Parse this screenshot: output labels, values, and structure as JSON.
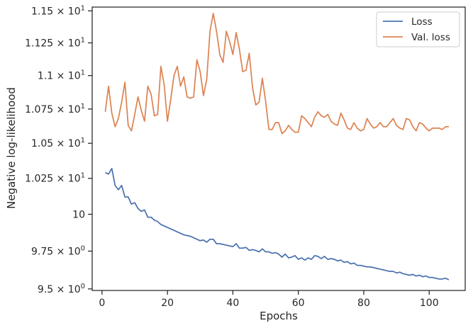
{
  "chart_data": {
    "type": "line",
    "xlabel": "Epochs",
    "ylabel": "Negative log-likelihood",
    "xlim": [
      -3,
      111
    ],
    "ylim": [
      9.49,
      11.53
    ],
    "yscale": "log",
    "grid": false,
    "legend_position": "top-right",
    "x_ticks": [
      0,
      20,
      40,
      60,
      80,
      100
    ],
    "y_ticks": [
      {
        "value": 9.5,
        "mantissa": "9.5",
        "exp": "0"
      },
      {
        "value": 9.75,
        "mantissa": "9.75",
        "exp": "0"
      },
      {
        "value": 10,
        "mantissa": "10",
        "exp": ""
      },
      {
        "value": 10.25,
        "mantissa": "1.025",
        "exp": "1"
      },
      {
        "value": 10.5,
        "mantissa": "1.05",
        "exp": "1"
      },
      {
        "value": 10.75,
        "mantissa": "1.075",
        "exp": "1"
      },
      {
        "value": 11,
        "mantissa": "1.1",
        "exp": "1"
      },
      {
        "value": 11.25,
        "mantissa": "1.125",
        "exp": "1"
      },
      {
        "value": 11.5,
        "mantissa": "1.15",
        "exp": "1"
      }
    ],
    "times_symbol": "×",
    "x": [
      1,
      2,
      3,
      4,
      5,
      6,
      7,
      8,
      9,
      10,
      11,
      12,
      13,
      14,
      15,
      16,
      17,
      18,
      19,
      20,
      21,
      22,
      23,
      24,
      25,
      26,
      27,
      28,
      29,
      30,
      31,
      32,
      33,
      34,
      35,
      36,
      37,
      38,
      39,
      40,
      41,
      42,
      43,
      44,
      45,
      46,
      47,
      48,
      49,
      50,
      51,
      52,
      53,
      54,
      55,
      56,
      57,
      58,
      59,
      60,
      61,
      62,
      63,
      64,
      65,
      66,
      67,
      68,
      69,
      70,
      71,
      72,
      73,
      74,
      75,
      76,
      77,
      78,
      79,
      80,
      81,
      82,
      83,
      84,
      85,
      86,
      87,
      88,
      89,
      90,
      91,
      92,
      93,
      94,
      95,
      96,
      97,
      98,
      99,
      100,
      101,
      102,
      103,
      104,
      105,
      106
    ],
    "series": [
      {
        "name": "Loss",
        "color": "#4c72b0",
        "values": [
          10.29,
          10.28,
          10.32,
          10.2,
          10.17,
          10.2,
          10.12,
          10.12,
          10.07,
          10.08,
          10.04,
          10.02,
          10.03,
          9.98,
          9.98,
          9.96,
          9.95,
          9.93,
          9.92,
          9.91,
          9.9,
          9.89,
          9.88,
          9.87,
          9.86,
          9.855,
          9.85,
          9.84,
          9.83,
          9.82,
          9.825,
          9.81,
          9.83,
          9.83,
          9.8,
          9.8,
          9.795,
          9.79,
          9.785,
          9.78,
          9.8,
          9.77,
          9.77,
          9.775,
          9.755,
          9.76,
          9.755,
          9.745,
          9.765,
          9.745,
          9.745,
          9.735,
          9.74,
          9.73,
          9.71,
          9.73,
          9.705,
          9.71,
          9.72,
          9.695,
          9.705,
          9.69,
          9.705,
          9.695,
          9.72,
          9.715,
          9.7,
          9.715,
          9.695,
          9.7,
          9.695,
          9.685,
          9.69,
          9.675,
          9.68,
          9.665,
          9.67,
          9.655,
          9.655,
          9.65,
          9.645,
          9.645,
          9.64,
          9.635,
          9.63,
          9.625,
          9.62,
          9.615,
          9.615,
          9.605,
          9.61,
          9.6,
          9.595,
          9.59,
          9.595,
          9.585,
          9.59,
          9.58,
          9.585,
          9.575,
          9.575,
          9.57,
          9.565,
          9.565,
          9.57,
          9.56
        ]
      },
      {
        "name": "Val. loss",
        "color": "#dd8452",
        "values": [
          10.73,
          10.92,
          10.72,
          10.62,
          10.68,
          10.8,
          10.95,
          10.63,
          10.59,
          10.71,
          10.84,
          10.74,
          10.66,
          10.92,
          10.86,
          10.7,
          10.71,
          11.07,
          10.93,
          10.66,
          10.82,
          11.0,
          11.07,
          10.92,
          10.99,
          10.84,
          10.83,
          10.84,
          11.12,
          11.03,
          10.85,
          10.97,
          11.34,
          11.48,
          11.34,
          11.16,
          11.1,
          11.34,
          11.26,
          11.16,
          11.33,
          11.2,
          11.03,
          11.04,
          11.17,
          10.91,
          10.78,
          10.8,
          10.98,
          10.81,
          10.6,
          10.6,
          10.65,
          10.65,
          10.57,
          10.59,
          10.63,
          10.6,
          10.58,
          10.58,
          10.7,
          10.68,
          10.65,
          10.62,
          10.69,
          10.73,
          10.7,
          10.69,
          10.71,
          10.66,
          10.64,
          10.63,
          10.72,
          10.67,
          10.61,
          10.6,
          10.65,
          10.61,
          10.59,
          10.6,
          10.68,
          10.64,
          10.61,
          10.62,
          10.65,
          10.62,
          10.62,
          10.65,
          10.68,
          10.63,
          10.61,
          10.6,
          10.68,
          10.67,
          10.62,
          10.59,
          10.65,
          10.64,
          10.61,
          10.59,
          10.61,
          10.61,
          10.61,
          10.6,
          10.62,
          10.62
        ]
      }
    ]
  }
}
